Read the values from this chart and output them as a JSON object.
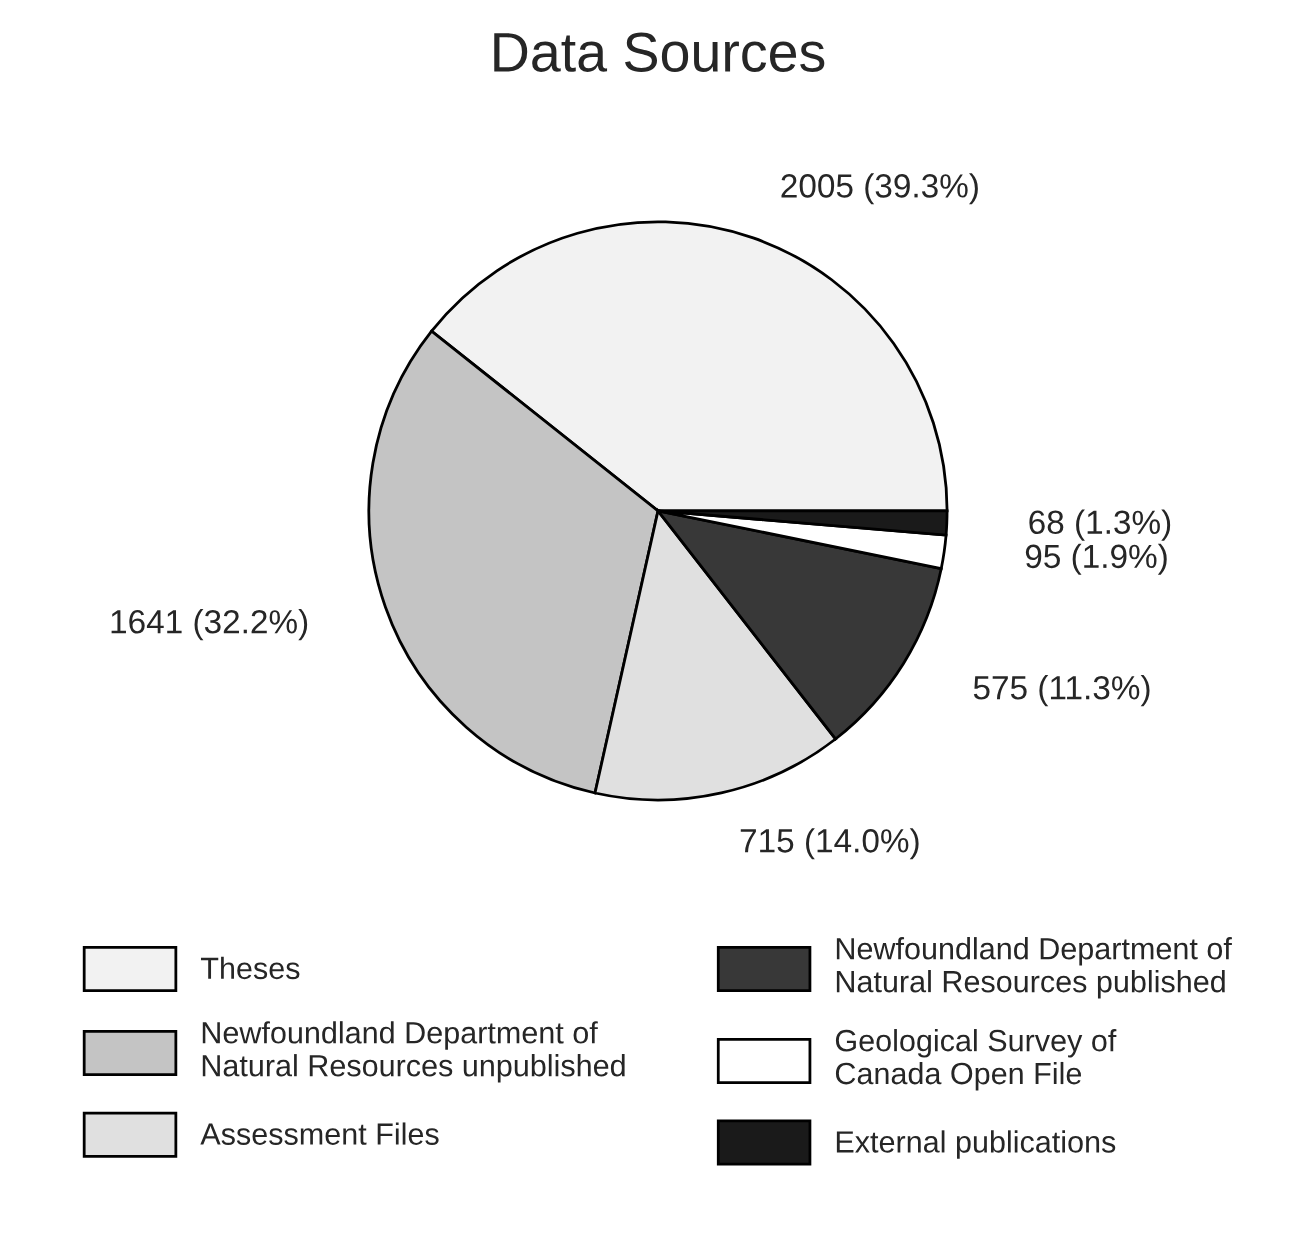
{
  "chart_data": {
    "type": "pie",
    "title": "Data Sources",
    "categories": [
      "Theses",
      "Newfoundland Department of\nNatural Resources unpublished",
      "Assessment Files",
      "Newfoundland Department of\nNatural Resources published",
      "Geological Survey of\nCanada Open File",
      "External publications"
    ],
    "values": [
      2005,
      1641,
      715,
      575,
      95,
      68
    ],
    "value_labels": [
      "2005 (39.3%)",
      "1641 (32.2%)",
      "715 (14.0%)",
      "575 (11.3%)",
      "95 (1.9%)",
      "68 (1.3%)"
    ],
    "colors": [
      "#f2f2f2",
      "#c4c4c4",
      "#e0e0e0",
      "#383838",
      "#ffffff",
      "#1a1a1a"
    ],
    "legend": "bottom"
  }
}
